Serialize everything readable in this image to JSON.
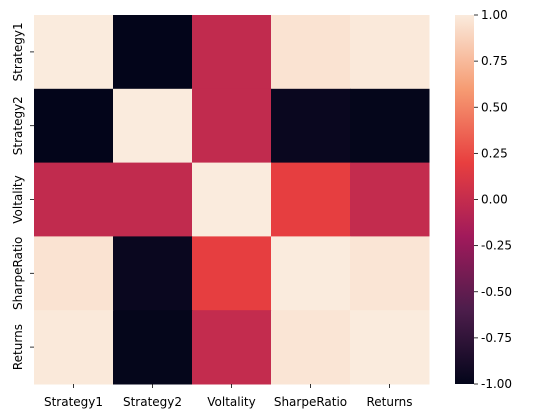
{
  "chart_data": {
    "type": "heatmap",
    "rows": [
      "Strategy1",
      "Strategy2",
      "Voltality",
      "SharpeRatio",
      "Returns"
    ],
    "columns": [
      "Strategy1",
      "Strategy2",
      "Voltality",
      "SharpeRatio",
      "Returns"
    ],
    "values": [
      [
        1.0,
        -1.0,
        -0.02,
        0.96,
        0.99
      ],
      [
        -1.0,
        1.0,
        -0.02,
        -0.96,
        -0.99
      ],
      [
        -0.02,
        -0.02,
        1.0,
        0.19,
        -0.01
      ],
      [
        0.96,
        -0.96,
        0.19,
        1.0,
        0.97
      ],
      [
        0.99,
        -0.99,
        -0.01,
        0.97,
        1.0
      ]
    ],
    "colorbar": {
      "vmin": -1.0,
      "vmax": 1.0,
      "ticks": [
        "1.00",
        "0.75",
        "0.50",
        "0.25",
        "0.00",
        "-0.25",
        "-0.50",
        "-0.75",
        "-1.00"
      ],
      "tick_values": [
        1.0,
        0.75,
        0.5,
        0.25,
        0.0,
        -0.25,
        -0.5,
        -0.75,
        -1.0
      ]
    },
    "colormap": "rocket",
    "colormap_stops": [
      "#03051a",
      "#4c1d4b",
      "#a11a5b",
      "#e83f3f",
      "#f69c73",
      "#faebdd"
    ]
  }
}
